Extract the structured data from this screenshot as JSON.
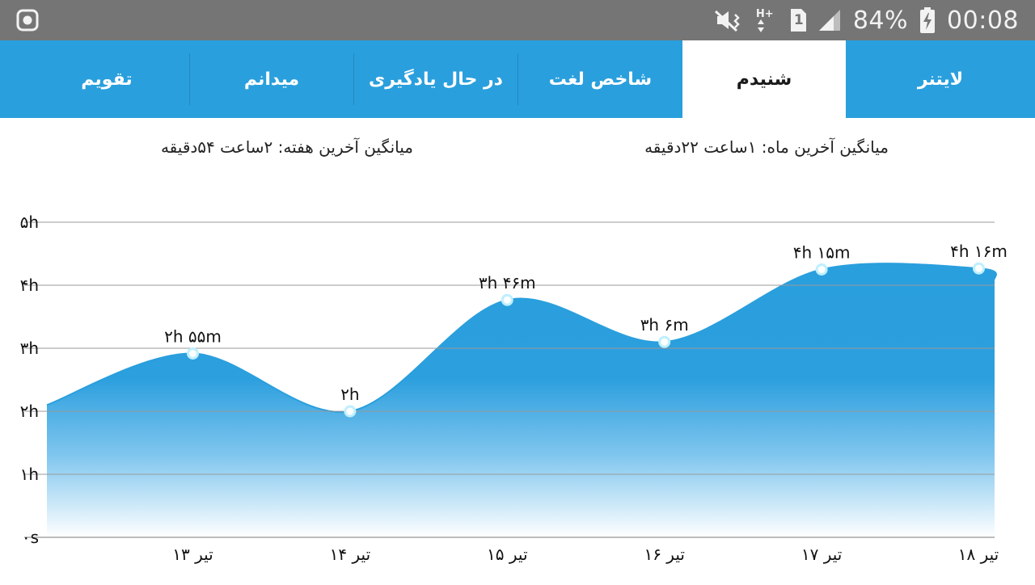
{
  "status_bar": {
    "battery": "84%",
    "time": "00:08",
    "sim_slot": "1",
    "network": "H+",
    "icons": [
      "screen-record-icon",
      "mute-icon",
      "data-arrows-icon",
      "sim-icon",
      "signal-icon",
      "battery-charging-icon"
    ]
  },
  "tabs": [
    {
      "label": "لایتنر",
      "active": false
    },
    {
      "label": "شنیدم",
      "active": true
    },
    {
      "label": "شاخص لغت",
      "active": false
    },
    {
      "label": "در حال یادگیری",
      "active": false
    },
    {
      "label": "میدانم",
      "active": false
    },
    {
      "label": "تقویم",
      "active": false
    }
  ],
  "averages": {
    "month": "میانگین آخرین ماه: ۱ساعت  ۲۲دقیقه",
    "week": "میانگین آخرین هفته: ۲ساعت  ۵۴دقیقه"
  },
  "colors": {
    "status_bar": "#757575",
    "tab_bar": "#2a9fdd",
    "area": "#2a9fdd",
    "point_ring": "#bfefff"
  },
  "chart_data": {
    "type": "area",
    "x_unit": "day of Tir",
    "x": [
      12.2,
      13,
      14,
      15,
      16,
      17,
      18,
      18.1
    ],
    "y_minutes": [
      126,
      175,
      120,
      226,
      186,
      255,
      256,
      245
    ],
    "points": [
      {
        "x": 13,
        "y_minutes": 175,
        "label": "۲h ۵۵m",
        "tick": "۱۳ تیر"
      },
      {
        "x": 14,
        "y_minutes": 120,
        "label": "۲h",
        "tick": "۱۴ تیر"
      },
      {
        "x": 15,
        "y_minutes": 226,
        "label": "۳h ۴۶m",
        "tick": "۱۵ تیر"
      },
      {
        "x": 16,
        "y_minutes": 186,
        "label": "۳h ۶m",
        "tick": "۱۶ تیر"
      },
      {
        "x": 17,
        "y_minutes": 255,
        "label": "۴h ۱۵m",
        "tick": "۱۷ تیر"
      },
      {
        "x": 18,
        "y_minutes": 256,
        "label": "۴h ۱۶m",
        "tick": "۱۸ تیر"
      }
    ],
    "y_ticks": [
      {
        "value": 0,
        "label": "۰s"
      },
      {
        "value": 60,
        "label": "۱h"
      },
      {
        "value": 120,
        "label": "۲h"
      },
      {
        "value": 180,
        "label": "۳h"
      },
      {
        "value": 240,
        "label": "۴h"
      },
      {
        "value": 300,
        "label": "۵h"
      }
    ],
    "ylim": [
      0,
      300
    ],
    "grid": true
  }
}
